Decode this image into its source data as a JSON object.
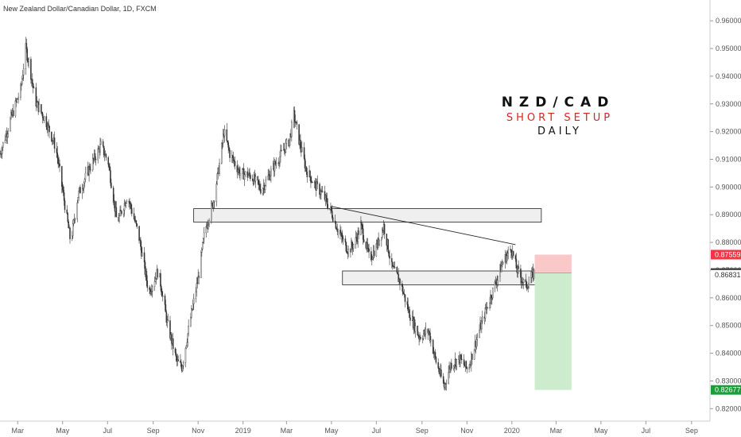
{
  "chart_data": {
    "type": "candlestick",
    "title": "New Zealand Dollar/Canadian Dollar, 1D, FXCM",
    "ylim": [
      0.8155,
      0.9675
    ],
    "y_ticks": [
      0.82,
      0.83,
      0.84,
      0.85,
      0.86,
      0.87,
      0.88,
      0.89,
      0.9,
      0.91,
      0.92,
      0.93,
      0.94,
      0.95,
      0.96
    ],
    "y_tick_labels": [
      "0.82000",
      "0.83000",
      "0.84000",
      "0.85000",
      "0.86000",
      "0.87000",
      "0.88000",
      "0.89000",
      "0.90000",
      "0.91000",
      "0.92000",
      "0.93000",
      "0.94000",
      "0.95000",
      "0.96000"
    ],
    "x_ticks": [
      {
        "label": "Mar",
        "date": "2018-03-01"
      },
      {
        "label": "May",
        "date": "2018-05-01"
      },
      {
        "label": "Jul",
        "date": "2018-07-01"
      },
      {
        "label": "Sep",
        "date": "2018-09-01"
      },
      {
        "label": "Nov",
        "date": "2018-11-01"
      },
      {
        "label": "2019",
        "date": "2019-01-01"
      },
      {
        "label": "Mar",
        "date": "2019-03-01"
      },
      {
        "label": "May",
        "date": "2019-05-01"
      },
      {
        "label": "Jul",
        "date": "2019-07-01"
      },
      {
        "label": "Sep",
        "date": "2019-09-01"
      },
      {
        "label": "Nov",
        "date": "2019-11-01"
      },
      {
        "label": "2020",
        "date": "2020-01-01"
      },
      {
        "label": "Mar",
        "date": "2020-03-01"
      },
      {
        "label": "May",
        "date": "2020-05-01"
      },
      {
        "label": "Jul",
        "date": "2020-07-01"
      },
      {
        "label": "Sep",
        "date": "2020-09-01"
      }
    ],
    "xlim": [
      "2018-02-05",
      "2020-09-26"
    ],
    "price_path": [
      [
        "2018-02-05",
        0.912
      ],
      [
        "2018-02-20",
        0.925
      ],
      [
        "2018-03-05",
        0.935
      ],
      [
        "2018-03-12",
        0.95
      ],
      [
        "2018-03-17",
        0.944
      ],
      [
        "2018-03-25",
        0.931
      ],
      [
        "2018-04-08",
        0.924
      ],
      [
        "2018-04-22",
        0.914
      ],
      [
        "2018-05-02",
        0.897
      ],
      [
        "2018-05-12",
        0.88
      ],
      [
        "2018-05-22",
        0.897
      ],
      [
        "2018-06-05",
        0.906
      ],
      [
        "2018-06-22",
        0.915
      ],
      [
        "2018-07-02",
        0.909
      ],
      [
        "2018-07-14",
        0.887
      ],
      [
        "2018-07-28",
        0.897
      ],
      [
        "2018-08-12",
        0.883
      ],
      [
        "2018-08-26",
        0.862
      ],
      [
        "2018-09-08",
        0.87
      ],
      [
        "2018-09-20",
        0.851
      ],
      [
        "2018-10-03",
        0.837
      ],
      [
        "2018-10-10",
        0.835
      ],
      [
        "2018-10-22",
        0.853
      ],
      [
        "2018-11-01",
        0.867
      ],
      [
        "2018-11-10",
        0.884
      ],
      [
        "2018-11-22",
        0.895
      ],
      [
        "2018-12-01",
        0.91
      ],
      [
        "2018-12-06",
        0.92
      ],
      [
        "2018-12-14",
        0.912
      ],
      [
        "2018-12-28",
        0.905
      ],
      [
        "2019-01-12",
        0.904
      ],
      [
        "2019-01-26",
        0.899
      ],
      [
        "2019-02-09",
        0.906
      ],
      [
        "2019-02-22",
        0.912
      ],
      [
        "2019-03-05",
        0.917
      ],
      [
        "2019-03-11",
        0.926
      ],
      [
        "2019-03-18",
        0.917
      ],
      [
        "2019-03-28",
        0.906
      ],
      [
        "2019-04-08",
        0.901
      ],
      [
        "2019-04-20",
        0.897
      ],
      [
        "2019-05-01",
        0.891
      ],
      [
        "2019-05-12",
        0.883
      ],
      [
        "2019-05-24",
        0.877
      ],
      [
        "2019-06-02",
        0.88
      ],
      [
        "2019-06-10",
        0.886
      ],
      [
        "2019-06-22",
        0.874
      ],
      [
        "2019-07-02",
        0.879
      ],
      [
        "2019-07-11",
        0.886
      ],
      [
        "2019-07-22",
        0.871
      ],
      [
        "2019-08-02",
        0.866
      ],
      [
        "2019-08-14",
        0.855
      ],
      [
        "2019-08-28",
        0.846
      ],
      [
        "2019-09-10",
        0.848
      ],
      [
        "2019-09-20",
        0.837
      ],
      [
        "2019-10-01",
        0.828
      ],
      [
        "2019-10-10",
        0.836
      ],
      [
        "2019-10-22",
        0.838
      ],
      [
        "2019-11-02",
        0.834
      ],
      [
        "2019-11-14",
        0.845
      ],
      [
        "2019-11-26",
        0.855
      ],
      [
        "2019-12-08",
        0.864
      ],
      [
        "2019-12-20",
        0.873
      ],
      [
        "2019-12-31",
        0.878
      ],
      [
        "2020-01-08",
        0.87
      ],
      [
        "2020-01-20",
        0.864
      ],
      [
        "2020-01-31",
        0.869
      ]
    ],
    "zones": [
      {
        "name": "resistance-zone-upper",
        "y_low": 0.8873,
        "y_high": 0.8922,
        "x_start": "2018-10-26",
        "x_end": "2020-02-10"
      },
      {
        "name": "resistance-zone-lower",
        "y_low": 0.8647,
        "y_high": 0.8697,
        "x_start": "2019-05-16",
        "x_end": "2020-02-22"
      }
    ],
    "trendline": {
      "x1": "2019-05-01",
      "y1": 0.893,
      "x2": "2020-01-06",
      "y2": 0.8792
    },
    "position": {
      "side": "short",
      "x_start": "2020-02-01",
      "x_end": "2020-03-22",
      "entry": 0.86896,
      "stop": 0.87559,
      "target": 0.82677
    },
    "price_tags": [
      {
        "label": "0.87559",
        "value": 0.87559,
        "color": "#f23645"
      },
      {
        "label": "0.86896",
        "value": 0.86896,
        "color": "#3c3c3c"
      },
      {
        "label": "0.86831",
        "value": 0.86831,
        "color": "none"
      },
      {
        "label": "0.82677",
        "value": 0.82677,
        "color": "#1e9c3a"
      }
    ],
    "annotations": [
      {
        "text": "NZD/CAD",
        "role": "symbol"
      },
      {
        "text": "SHORT SETUP",
        "role": "setup"
      },
      {
        "text": "DAILY",
        "role": "timeframe"
      }
    ],
    "colors": {
      "candle_body": "#333333",
      "zone_fill": "#ececec",
      "stop_fill": "#fac8c8",
      "target_fill": "#cdebcd",
      "axis_line": "#cccccc",
      "setup_text": "#d8261e"
    }
  }
}
